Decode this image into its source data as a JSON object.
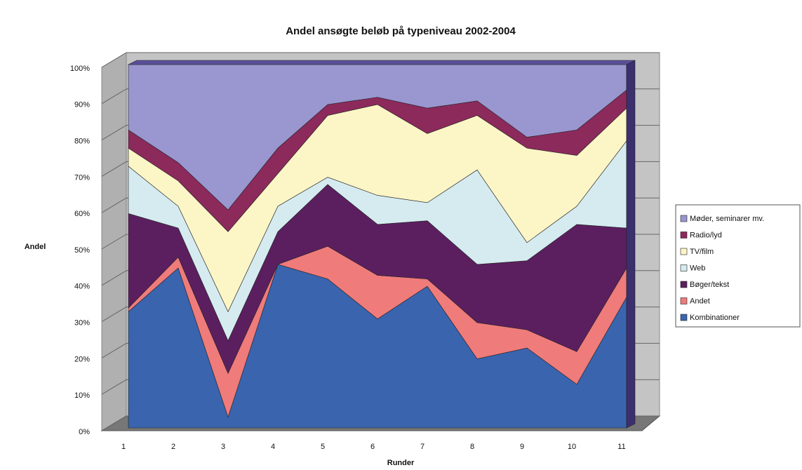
{
  "chart_data": {
    "type": "stacked_area",
    "title": "Andel ansøgte beløb på typeniveau 2002-2004",
    "x_label": "Runder",
    "y_label": "Andel",
    "categories": [
      "1",
      "2",
      "3",
      "4",
      "5",
      "6",
      "7",
      "8",
      "9",
      "10",
      "11"
    ],
    "series": [
      {
        "name": "Kombinationer",
        "color": "#3a64ae",
        "values": [
          32,
          44,
          3,
          45,
          41,
          30,
          39,
          19,
          22,
          12,
          36
        ]
      },
      {
        "name": "Andet",
        "color": "#ef7b7b",
        "values": [
          1,
          3,
          12,
          0,
          9,
          12,
          2,
          10,
          5,
          9,
          8
        ]
      },
      {
        "name": "Bøger/tekst",
        "color": "#5b1f5f",
        "values": [
          26,
          8,
          9,
          9,
          17,
          14,
          16,
          16,
          19,
          35,
          11
        ]
      },
      {
        "name": "Web",
        "color": "#d5ebf0",
        "values": [
          13,
          6,
          8,
          7,
          2,
          8,
          5,
          26,
          5,
          5,
          24
        ]
      },
      {
        "name": "TV/film",
        "color": "#fcf5c6",
        "values": [
          5,
          7,
          22,
          9,
          17,
          25,
          19,
          15,
          26,
          14,
          9
        ]
      },
      {
        "name": "Radio/lyd",
        "color": "#8c2a5c",
        "values": [
          5,
          5,
          6,
          7,
          3,
          2,
          7,
          4,
          3,
          7,
          5
        ]
      },
      {
        "name": "Møder, seminarer mv.",
        "color": "#9a96cf",
        "values": [
          18,
          27,
          40,
          23,
          11,
          9,
          12,
          10,
          20,
          18,
          7
        ]
      }
    ],
    "ylim": [
      0,
      100
    ],
    "yticks": [
      {
        "value": 0,
        "label": "0%"
      },
      {
        "value": 10,
        "label": "10%"
      },
      {
        "value": 20,
        "label": "20%"
      },
      {
        "value": 30,
        "label": "30%"
      },
      {
        "value": 40,
        "label": "40%"
      },
      {
        "value": 50,
        "label": "50%"
      },
      {
        "value": 60,
        "label": "60%"
      },
      {
        "value": 70,
        "label": "70%"
      },
      {
        "value": 80,
        "label": "80%"
      },
      {
        "value": 90,
        "label": "90%"
      },
      {
        "value": 100,
        "label": "100%"
      }
    ],
    "grid": true,
    "legend": "right"
  }
}
